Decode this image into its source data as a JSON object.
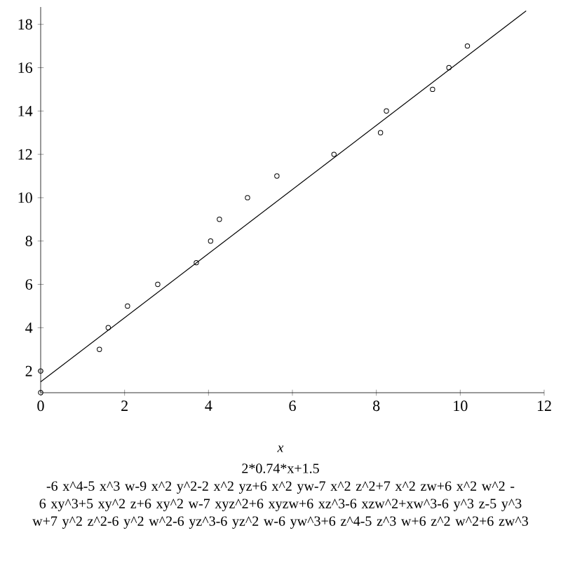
{
  "chart_data": {
    "type": "scatter",
    "xlabel": "x",
    "annotations": [
      "2*0.74*x+1.5",
      "-6 x^4-5 x^3 w-9 x^2 y^2-2 x^2 yz+6 x^2 yw-7 x^2 z^2+7 x^2 zw+6 x^2 w^2 -6 xy^3+5 xy^2 z+6 xy^2 w-7 xyz^2+6 xyzw+6 xz^3-6 xzw^2+xw^3-6 y^3 z-5 y^3 w+7 y^2 z^2-6 y^2 w^2-6 yz^3-6 yz^2 w-6 yw^3+6 z^4-5 z^3 w+6 z^2 w^2+6 zw^3"
    ],
    "xlim": [
      0,
      12
    ],
    "ylim": [
      1,
      18.8
    ],
    "xticks": [
      0,
      2,
      4,
      6,
      8,
      10,
      12
    ],
    "yticks": [
      2,
      4,
      6,
      8,
      10,
      12,
      14,
      16,
      18
    ],
    "marker": "circle",
    "series": [
      {
        "color": "#000000",
        "x": [
          0,
          0,
          1.4,
          1.61,
          2.07,
          2.79,
          3.71,
          4.05,
          4.26,
          4.93,
          5.63,
          6.99,
          8.1,
          8.24,
          9.34,
          9.73,
          10.17
        ],
        "values": [
          1,
          2,
          3,
          4,
          5,
          6,
          7,
          8,
          9,
          10,
          11,
          12,
          13,
          14,
          15,
          16,
          17
        ]
      },
      {
        "type": "line",
        "color": "#000000",
        "marker": "none",
        "x": [
          0,
          11.57
        ],
        "values": [
          1.5,
          18.62
        ]
      }
    ]
  }
}
